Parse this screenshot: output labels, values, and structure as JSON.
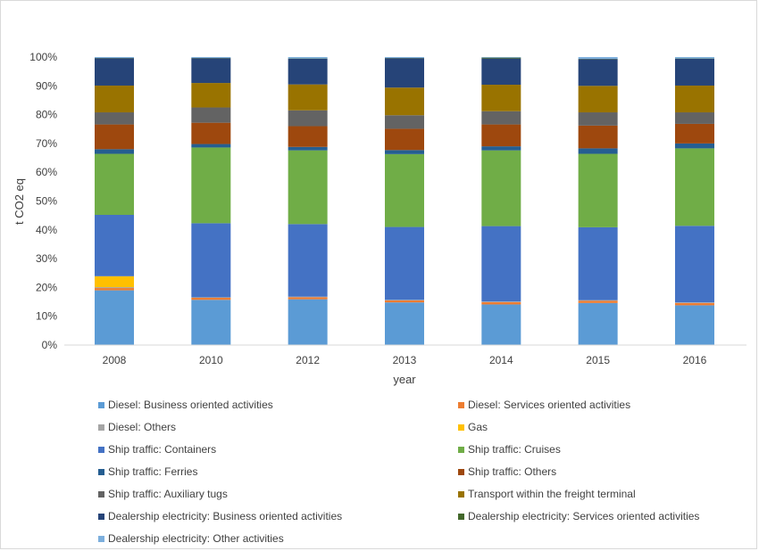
{
  "chart_data": {
    "type": "bar",
    "stacked": true,
    "title": "",
    "xlabel": "year",
    "ylabel": "t CO2 eq",
    "ylim": [
      0,
      100
    ],
    "yticks": [
      "0%",
      "10%",
      "20%",
      "30%",
      "40%",
      "50%",
      "60%",
      "70%",
      "80%",
      "90%",
      "100%"
    ],
    "categories": [
      "2008",
      "2010",
      "2012",
      "2013",
      "2014",
      "2015",
      "2016"
    ],
    "legend_position": "bottom",
    "grid": false,
    "series": [
      {
        "name": "Diesel: Business oriented activities",
        "color": "#5b9bd5",
        "values": [
          19.0,
          15.7,
          15.9,
          14.8,
          14.1,
          14.6,
          13.8
        ]
      },
      {
        "name": "Diesel: Services oriented activities",
        "color": "#ed7d31",
        "values": [
          0.8,
          0.7,
          0.7,
          0.7,
          0.8,
          0.8,
          0.8
        ]
      },
      {
        "name": "Diesel: Others",
        "color": "#a5a5a5",
        "values": [
          0.3,
          0.2,
          0.2,
          0.2,
          0.2,
          0.2,
          0.2
        ]
      },
      {
        "name": "Gas",
        "color": "#ffc000",
        "values": [
          3.8,
          0.0,
          0.0,
          0.0,
          0.0,
          0.0,
          0.0
        ]
      },
      {
        "name": "Ship traffic: Containers",
        "color": "#4472c4",
        "values": [
          21.3,
          25.7,
          25.2,
          25.3,
          26.2,
          25.3,
          26.6
        ]
      },
      {
        "name": "Ship traffic: Cruises",
        "color": "#70ad47",
        "values": [
          21.2,
          26.3,
          25.6,
          25.3,
          26.3,
          25.5,
          26.9
        ]
      },
      {
        "name": "Ship traffic: Ferries",
        "color": "#255e91",
        "values": [
          1.6,
          1.2,
          1.2,
          1.4,
          1.4,
          1.9,
          1.7
        ]
      },
      {
        "name": "Ship traffic: Others",
        "color": "#9e480e",
        "values": [
          8.6,
          7.4,
          7.2,
          7.4,
          7.6,
          7.9,
          6.8
        ]
      },
      {
        "name": "Ship traffic: Auxiliary tugs",
        "color": "#636363",
        "values": [
          4.2,
          5.3,
          5.5,
          4.7,
          4.6,
          4.6,
          4.0
        ]
      },
      {
        "name": "Transport within the freight terminal",
        "color": "#997300",
        "values": [
          9.3,
          8.5,
          9.0,
          9.6,
          9.2,
          9.2,
          9.3
        ]
      },
      {
        "name": "Dealership electricity: Business oriented activities",
        "color": "#264478",
        "values": [
          9.5,
          8.6,
          8.9,
          10.2,
          9.1,
          9.3,
          9.3
        ]
      },
      {
        "name": "Dealership electricity: Services oriented activities",
        "color": "#43682b",
        "values": [
          0.1,
          0.1,
          0.1,
          0.1,
          0.3,
          0.1,
          0.1
        ]
      },
      {
        "name": "Dealership electricity: Other activities",
        "color": "#7cafdd",
        "values": [
          0.3,
          0.3,
          0.5,
          0.3,
          0.2,
          0.6,
          0.5
        ]
      }
    ]
  }
}
